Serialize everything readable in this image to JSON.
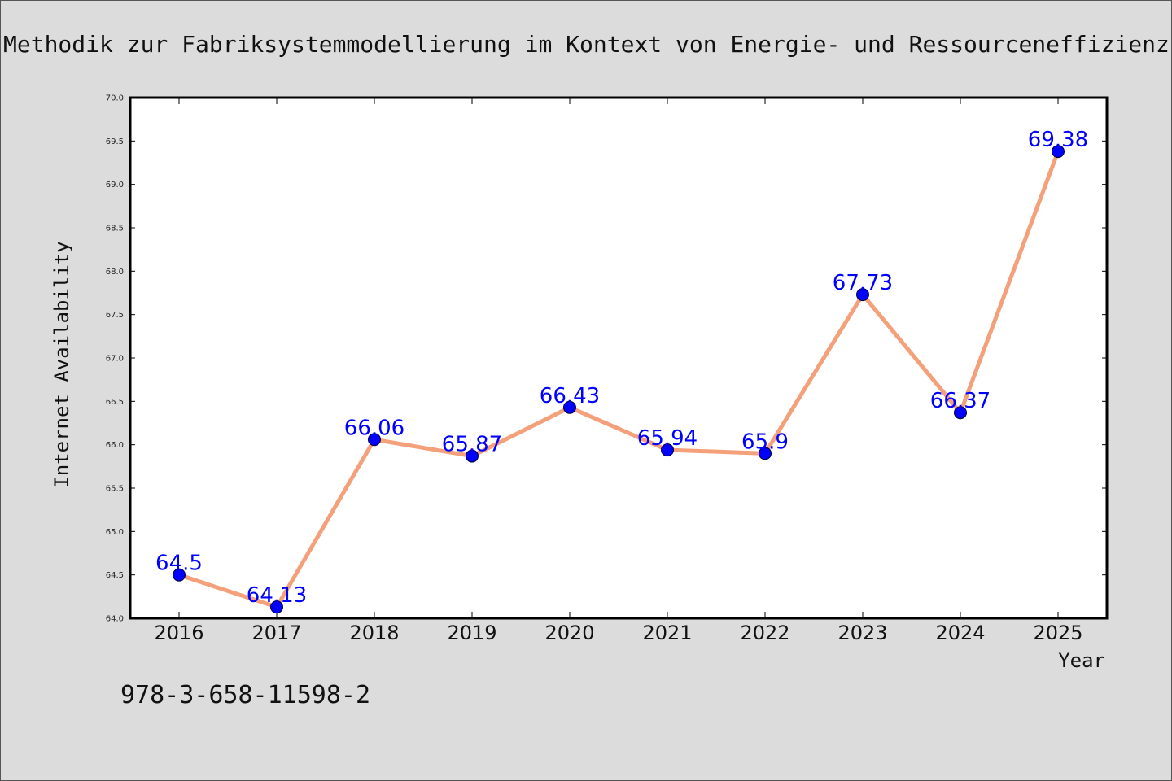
{
  "chart_data": {
    "type": "line",
    "title": "Methodik zur Fabriksystemmodellierung im Kontext von Energie- und Ressourceneffizienz",
    "xlabel": "Year",
    "ylabel": "Internet Availability",
    "categories": [
      "2016",
      "2017",
      "2018",
      "2019",
      "2020",
      "2021",
      "2022",
      "2023",
      "2024",
      "2025"
    ],
    "series": [
      {
        "values": [
          64.5,
          64.13,
          66.06,
          65.87,
          66.43,
          65.94,
          65.9,
          67.73,
          66.37,
          69.38
        ],
        "data_labels": [
          "64.5",
          "64.13",
          "66.06",
          "65.87",
          "66.43",
          "65.94",
          "65.9",
          "67.73",
          "66.37",
          "69.38"
        ]
      }
    ],
    "ylim": [
      64.0,
      70.0
    ],
    "yticks": [
      "64.0",
      "64.5",
      "65.0",
      "65.5",
      "66.0",
      "66.5",
      "67.0",
      "67.5",
      "68.0",
      "68.5",
      "69.0",
      "69.5",
      "70.0"
    ],
    "grid": false,
    "line_color": "#f4a07a",
    "marker_color": "#0000ff",
    "label_color": "#0000ff"
  },
  "annotation": {
    "isbn": "978-3-658-11598-2"
  },
  "colors": {
    "background": "#dcdcdc",
    "plot_area": "#ffffff"
  }
}
